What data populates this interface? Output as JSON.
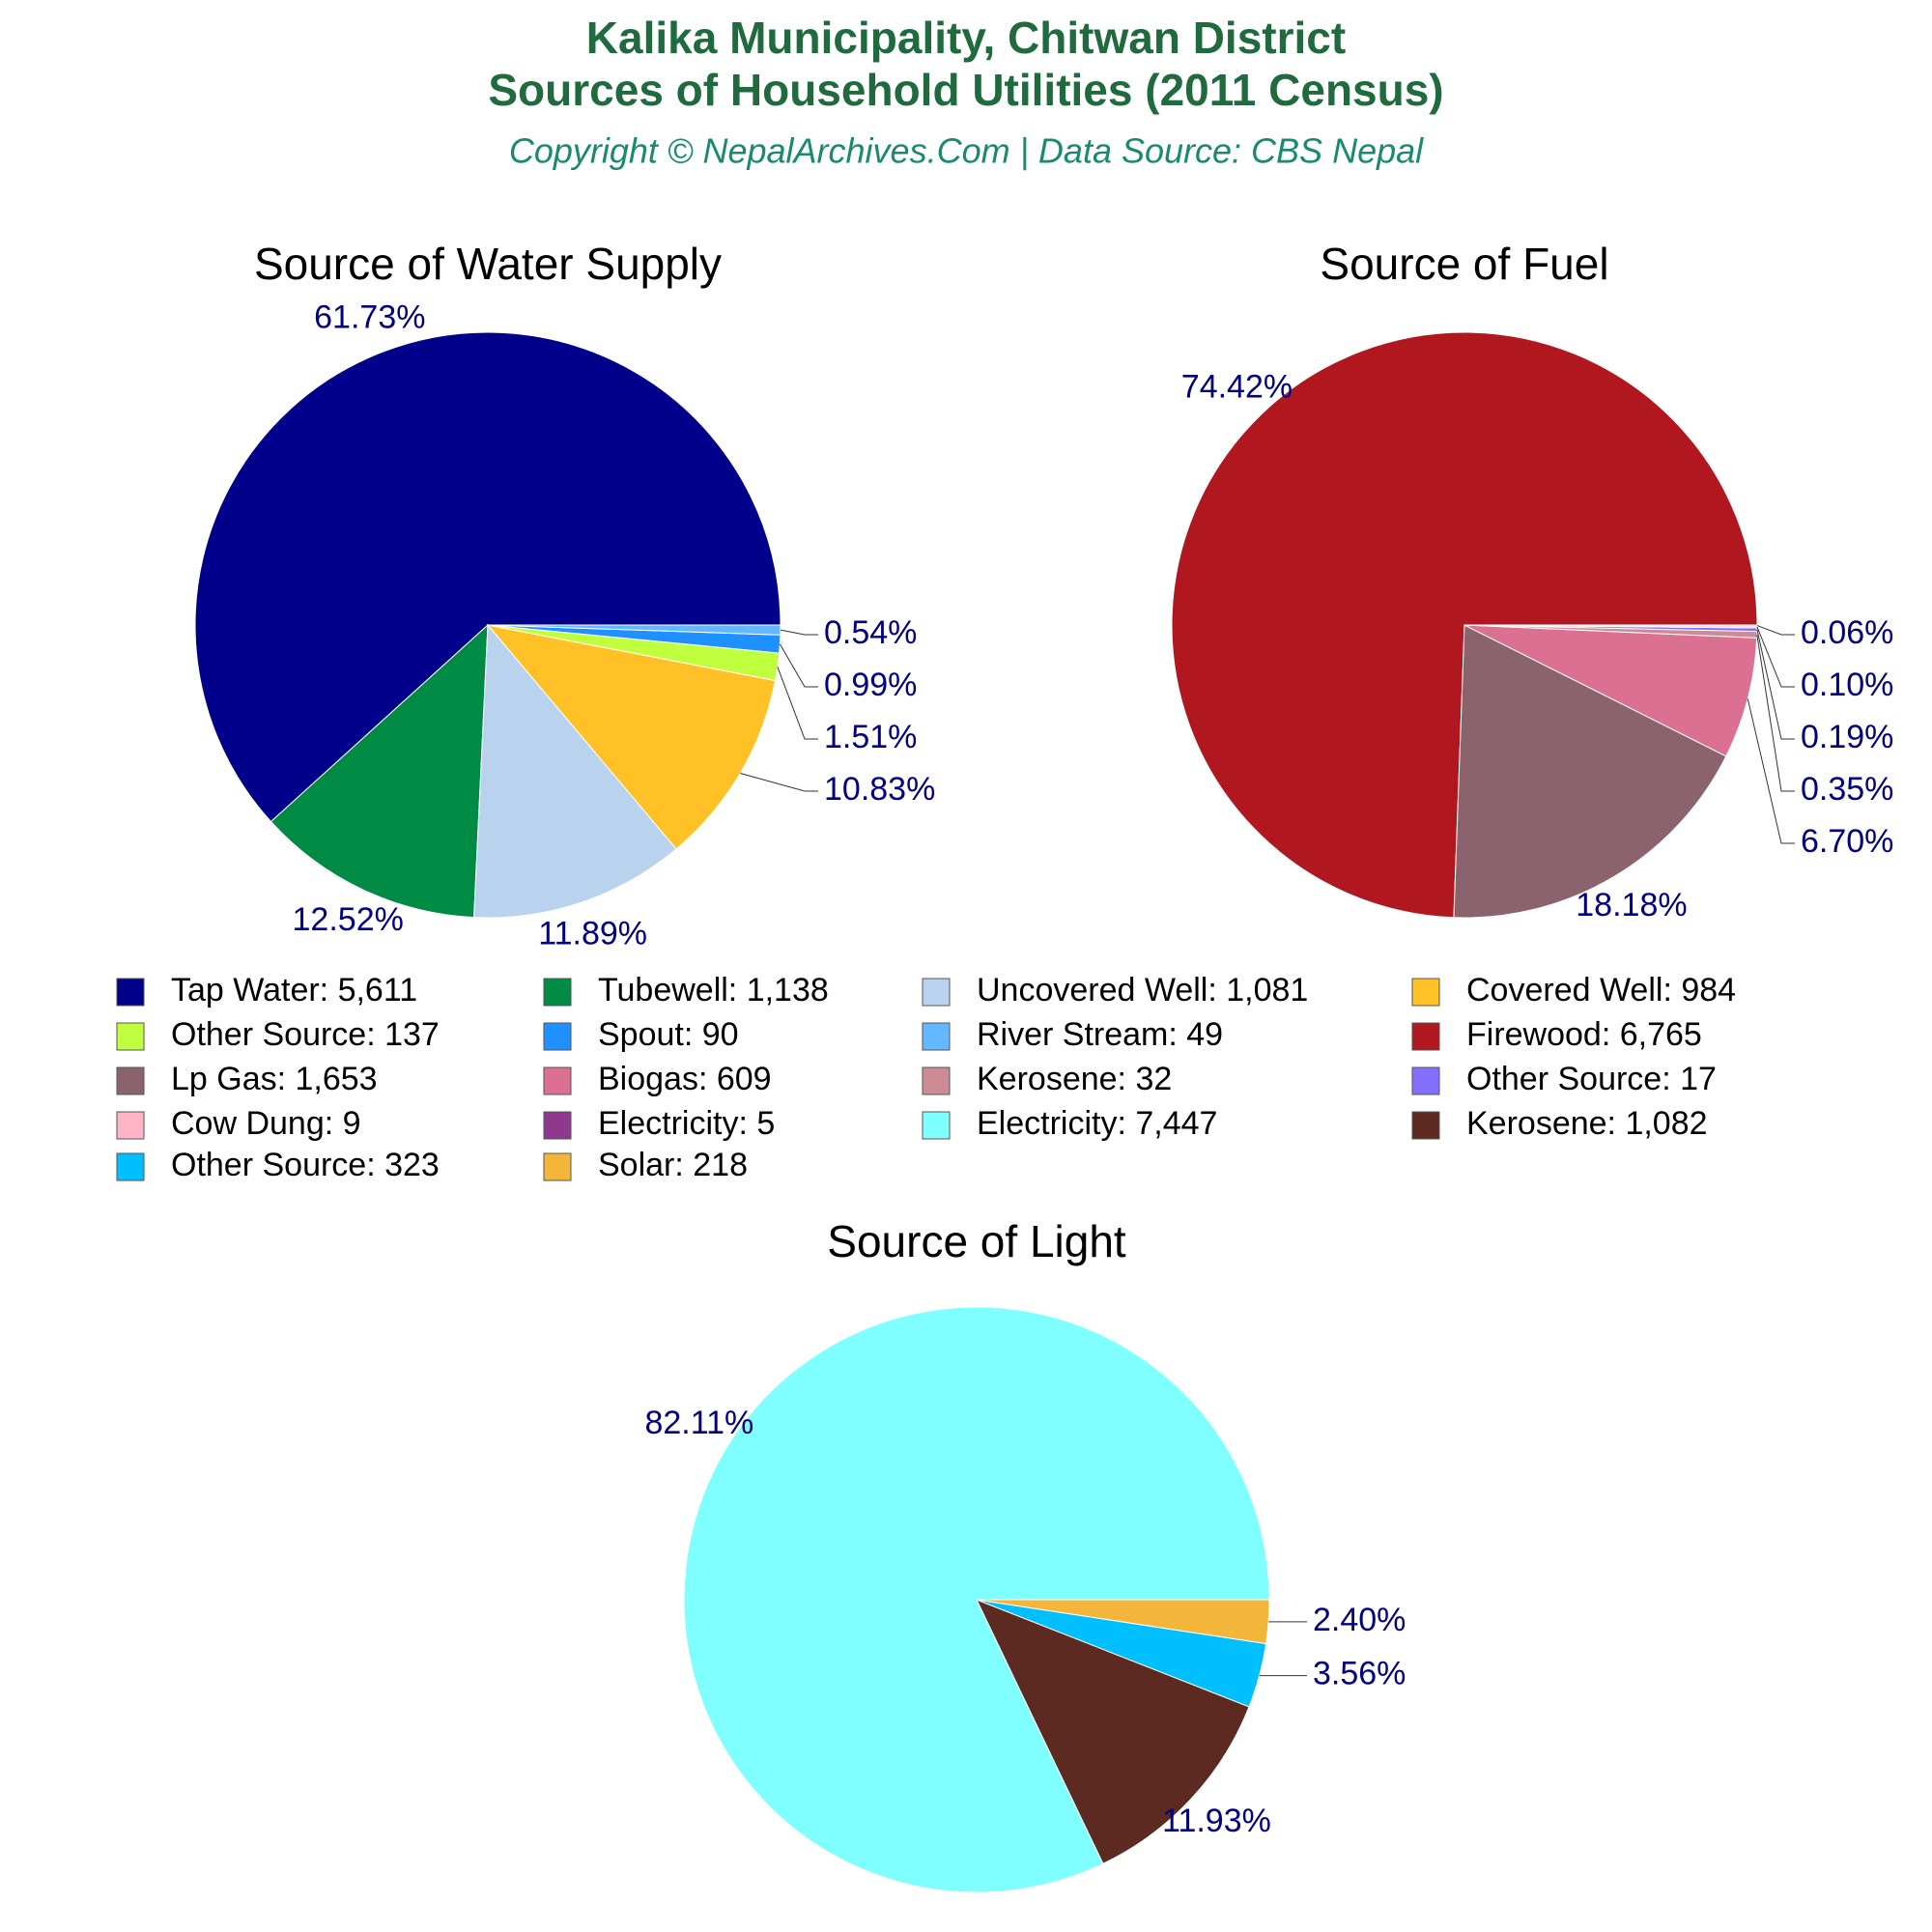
{
  "title": [
    "Kalika Municipality, Chitwan District",
    "Sources of Household Utilities (2011 Census)"
  ],
  "subtitle": "Copyright © NepalArchives.Com | Data Source: CBS Nepal",
  "chart_data": [
    {
      "type": "pie",
      "title": "Source of Water Supply",
      "categories": [
        "Tap Water: 5,611",
        "Tubewell: 1,138",
        "Uncovered Well: 1,081",
        "Covered Well: 984",
        "Other Source: 137",
        "Spout: 90",
        "River Stream: 49"
      ],
      "values": [
        61.73,
        12.52,
        11.89,
        10.83,
        1.51,
        0.99,
        0.54
      ],
      "value_labels": [
        "61.73%",
        "12.52%",
        "11.89%",
        "10.83%",
        "1.51%",
        "0.99%",
        "0.54%"
      ],
      "colors": [
        "#00008b",
        "#008b45",
        "#b9d3ee",
        "#ffc125",
        "#c0ff3e",
        "#1e90ff",
        "#63b8ff"
      ]
    },
    {
      "type": "pie",
      "title": "Source of Fuel",
      "categories": [
        "Firewood: 6,765",
        "Lp Gas: 1,653",
        "Biogas: 609",
        "Kerosene: 32",
        "Other Source: 17",
        "Cow Dung: 9",
        "Electricity: 5"
      ],
      "values": [
        74.42,
        18.18,
        6.7,
        0.35,
        0.19,
        0.1,
        0.06
      ],
      "value_labels": [
        "74.42%",
        "18.18%",
        "6.70%",
        "0.35%",
        "0.19%",
        "0.10%",
        "0.06%"
      ],
      "colors": [
        "#b0171f",
        "#8b636c",
        "#db7093",
        "#cd8c95",
        "#8470ff",
        "#ffb5c5",
        "#8e388e"
      ]
    },
    {
      "type": "pie",
      "title": "Source of Light",
      "categories": [
        "Electricity: 7,447",
        "Kerosene: 1,082",
        "Other Source: 323",
        "Solar: 218"
      ],
      "values": [
        82.11,
        11.93,
        3.56,
        2.4
      ],
      "value_labels": [
        "82.11%",
        "11.93%",
        "3.56%",
        "2.40%"
      ],
      "colors": [
        "#7fffff",
        "#5c2a20",
        "#00bfff",
        "#f4b63a"
      ]
    }
  ]
}
